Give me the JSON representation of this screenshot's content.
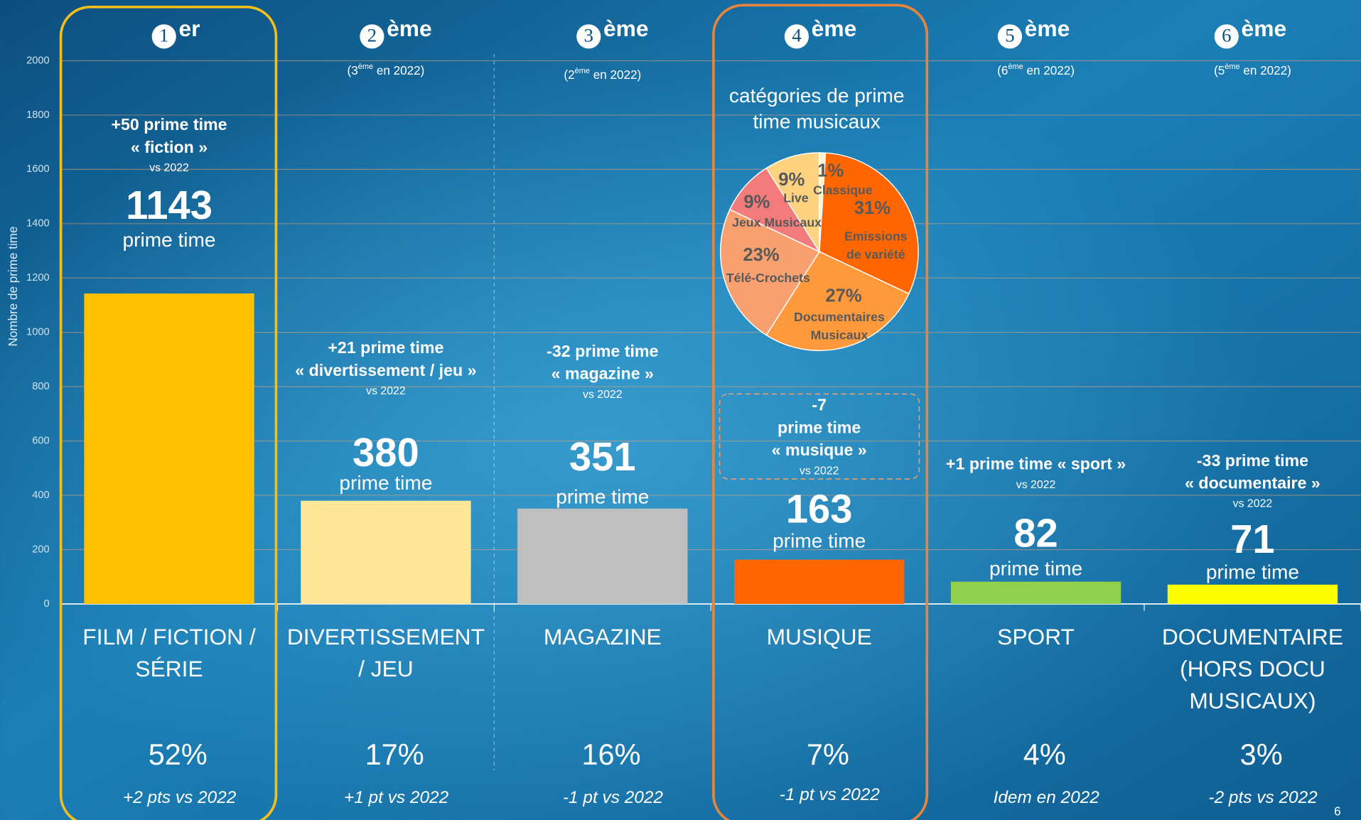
{
  "chart_data": [
    {
      "type": "bar",
      "categories": [
        "FILM / FICTION / SÉRIE",
        "DIVERTISSEMENT / JEU",
        "MAGAZINE",
        "MUSIQUE",
        "SPORT",
        "DOCUMENTAIRE (HORS DOCU MUSICAUX)"
      ],
      "values": [
        1143,
        380,
        351,
        163,
        82,
        71
      ],
      "colors": [
        "#ffc000",
        "#ffe699",
        "#bfbfbf",
        "#ff6600",
        "#92d050",
        "#ffff00"
      ],
      "ylim": [
        0,
        2000
      ],
      "yticks": [
        0,
        200,
        400,
        600,
        800,
        1000,
        1200,
        1400,
        1600,
        1800,
        2000
      ],
      "y_label": "Nombre de prime time",
      "value_unit": "prime time",
      "grid": true
    },
    {
      "type": "pie",
      "title": "catégories de prime time musicaux",
      "categories": [
        "Classique",
        "Emissions de variété",
        "Documentaires Musicaux",
        "Télé-Crochets",
        "Jeux Musicaux",
        "Live"
      ],
      "values": [
        1,
        31,
        27,
        23,
        9,
        9
      ],
      "value_labels": [
        "1%",
        "31%",
        "27%",
        "23%",
        "9%",
        "9%"
      ],
      "colors": [
        "#fff2cc",
        "#ff6600",
        "#ff9a3c",
        "#f9a070",
        "#f47b7b",
        "#ffd27f"
      ]
    }
  ],
  "columns": [
    {
      "rank": "1",
      "rank_suffix": "er",
      "change": [
        "+50 prime time",
        "« fiction »",
        "vs 2022"
      ],
      "share": "52%",
      "trend": "+2 pts vs 2022"
    },
    {
      "rank": "2",
      "rank_suffix": "ème",
      "previous": [
        "(3",
        "ème",
        " en 2022)"
      ],
      "change": [
        "+21 prime time",
        "« divertissement / jeu »",
        "vs 2022"
      ],
      "share": "17%",
      "trend": "+1 pt vs 2022"
    },
    {
      "rank": "3",
      "rank_suffix": "ème",
      "previous": [
        "(2",
        "ème",
        " en 2022)"
      ],
      "change": [
        "-32 prime time",
        "« magazine »",
        "vs 2022"
      ],
      "share": "16%",
      "trend": "-1 pt vs 2022"
    },
    {
      "rank": "4",
      "rank_suffix": "ème",
      "change": [
        "-7",
        "prime time",
        "« musique »",
        "vs 2022"
      ],
      "share": "7%",
      "trend": "-1 pt vs 2022"
    },
    {
      "rank": "5",
      "rank_suffix": "ème",
      "previous": [
        "(6",
        "ème",
        " en 2022)"
      ],
      "change": [
        "+1 prime time « sport »",
        "vs 2022"
      ],
      "share": "4%",
      "trend": "Idem en 2022"
    },
    {
      "rank": "6",
      "rank_suffix": "ème",
      "previous": [
        "(5",
        "ème",
        " en 2022)"
      ],
      "change": [
        "-33 prime time",
        "« documentaire »",
        "vs 2022"
      ],
      "share": "3%",
      "trend": "-2 pts vs 2022"
    }
  ],
  "page_number": "6"
}
